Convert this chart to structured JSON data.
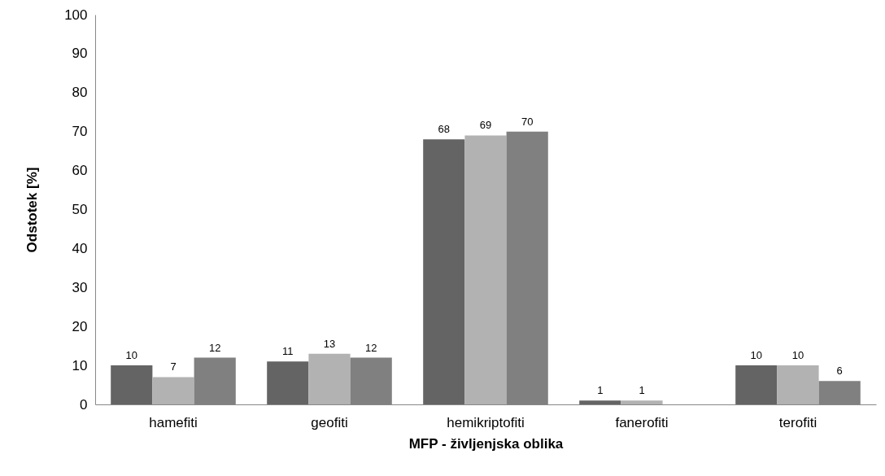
{
  "chart_data": {
    "type": "bar",
    "xlabel": "MFP - življenjska oblika",
    "ylabel": "Odstotek [%]",
    "categories": [
      "hamefiti",
      "geofiti",
      "hemikriptofiti",
      "fanerofiti",
      "terofiti"
    ],
    "series": [
      {
        "color": "#646464",
        "values": [
          10,
          11,
          68,
          1,
          10
        ]
      },
      {
        "color": "#b2b2b2",
        "values": [
          7,
          13,
          69,
          1,
          10
        ]
      },
      {
        "color": "#808080",
        "values": [
          12,
          12,
          70,
          null,
          6
        ]
      }
    ],
    "ylim": [
      0,
      100
    ],
    "yticks": [
      0,
      10,
      20,
      30,
      40,
      50,
      60,
      70,
      80,
      90,
      100
    ],
    "grid": false,
    "data_labels": true
  }
}
